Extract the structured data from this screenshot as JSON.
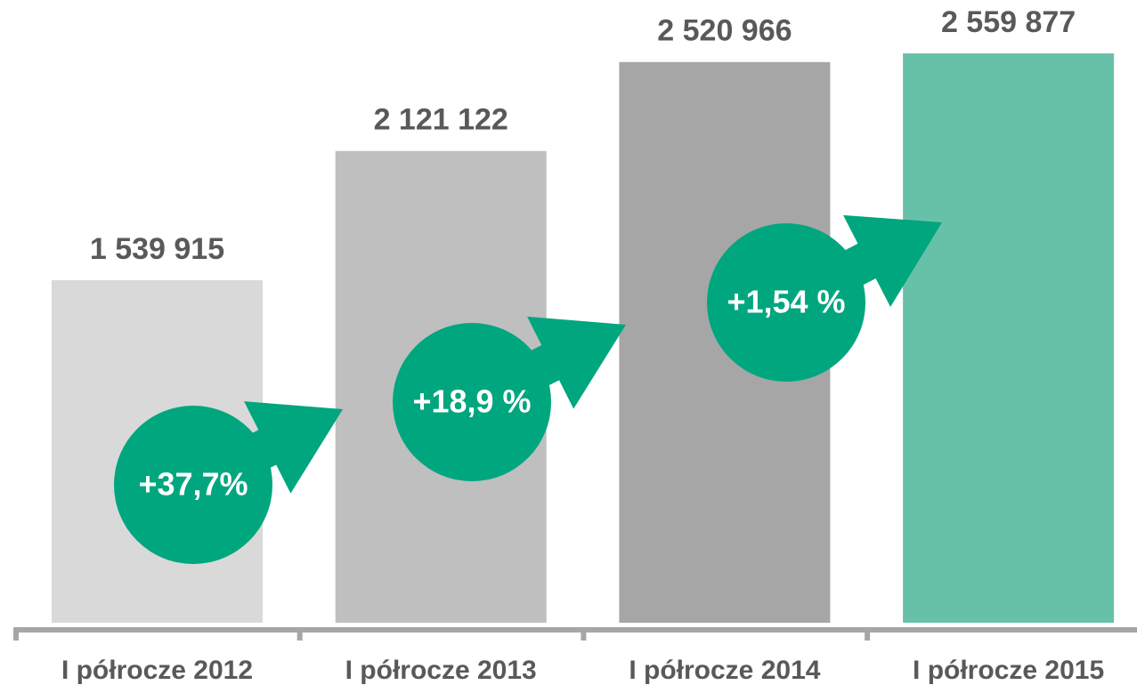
{
  "chart_data": {
    "type": "bar",
    "categories": [
      "I półrocze 2012",
      "I półrocze 2013",
      "I półrocze 2014",
      "I półrocze 2015"
    ],
    "values": [
      1539915,
      2121122,
      2520966,
      2559877
    ],
    "value_labels": [
      "1 539 915",
      "2 121 122",
      "2 520 966",
      "2 559 877"
    ],
    "colors": [
      "#d9d9d9",
      "#bfbfbf",
      "#a6a6a6",
      "#67c1a8"
    ],
    "annotations": [
      "+37,7%",
      "+18,9 %",
      "+1,54 %"
    ],
    "ylim": [
      0,
      2800000
    ]
  }
}
